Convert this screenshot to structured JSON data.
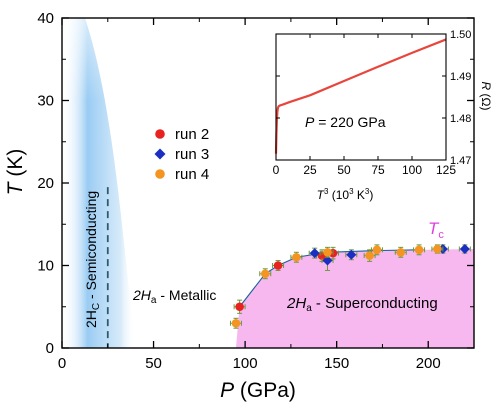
{
  "chart_data": [
    {
      "type": "scatter",
      "xlabel": {
        "main": "P",
        "unit": " (GPa)"
      },
      "ylabel": {
        "main": "T",
        "unit": " (K)"
      },
      "xlim": [
        0,
        225
      ],
      "ylim": [
        0,
        40
      ],
      "x_ticks": [
        0,
        50,
        100,
        150,
        200
      ],
      "y_ticks": [
        0,
        10,
        20,
        30,
        40
      ],
      "grid": false,
      "legend_position": "center",
      "colors": {
        "axes": "#000000",
        "semiconducting_fill": "#2a8fe0",
        "superconducting_fill": "#f7b8f0",
        "boundary_line": "#2b5b6e",
        "tc_label": "#e040e0",
        "errorbar": "#6a9a3a",
        "fit_line": "#1f5f9a"
      },
      "series": [
        {
          "name": "run 2",
          "marker": "circle",
          "color": "#e8231f",
          "points": [
            {
              "x": 97,
              "y": 5.0,
              "xerr": 3,
              "yerr": 0.8
            },
            {
              "x": 118,
              "y": 10.0,
              "xerr": 3,
              "yerr": 0.6
            },
            {
              "x": 142,
              "y": 11.2,
              "xerr": 3,
              "yerr": 0.7
            },
            {
              "x": 148,
              "y": 11.5,
              "xerr": 3,
              "yerr": 0.7
            }
          ]
        },
        {
          "name": "run 3",
          "marker": "diamond",
          "color": "#1a2fc2",
          "points": [
            {
              "x": 138,
              "y": 11.5,
              "xerr": 3,
              "yerr": 0.6
            },
            {
              "x": 145,
              "y": 10.6,
              "xerr": 3,
              "yerr": 1.2
            },
            {
              "x": 158,
              "y": 11.3,
              "xerr": 3,
              "yerr": 0.6
            },
            {
              "x": 208,
              "y": 12.0,
              "xerr": 3,
              "yerr": 0.5
            },
            {
              "x": 220,
              "y": 12.0,
              "xerr": 3,
              "yerr": 0.5
            }
          ]
        },
        {
          "name": "run 4",
          "marker": "circle",
          "color": "#f39520",
          "points": [
            {
              "x": 95,
              "y": 3.0,
              "xerr": 3,
              "yerr": 0.6
            },
            {
              "x": 111,
              "y": 9.0,
              "xerr": 3,
              "yerr": 0.6
            },
            {
              "x": 128,
              "y": 11.0,
              "xerr": 3,
              "yerr": 0.6
            },
            {
              "x": 145,
              "y": 11.6,
              "xerr": 3,
              "yerr": 0.6
            },
            {
              "x": 168,
              "y": 11.2,
              "xerr": 3,
              "yerr": 0.7
            },
            {
              "x": 172,
              "y": 11.9,
              "xerr": 3,
              "yerr": 0.6
            },
            {
              "x": 185,
              "y": 11.6,
              "xerr": 3,
              "yerr": 0.6
            },
            {
              "x": 195,
              "y": 11.9,
              "xerr": 3,
              "yerr": 0.6
            },
            {
              "x": 205,
              "y": 12.0,
              "xerr": 3,
              "yerr": 0.5
            }
          ]
        }
      ],
      "regions": [
        {
          "name": "semiconducting",
          "label_main": "2H",
          "label_sub": "C",
          "label_rest": " - Semiconducting"
        },
        {
          "name": "metallic",
          "label_main": "2H",
          "label_sub": "a",
          "label_rest": " - Metallic"
        },
        {
          "name": "superconducting",
          "label_main": "2H",
          "label_sub": "a",
          "label_rest": " - Superconducting"
        }
      ],
      "tc_label": {
        "main": "T",
        "sub": "c"
      },
      "semiconducting_boundary_x": 25,
      "tc_boundary": [
        [
          95,
          0
        ],
        [
          97,
          5.0
        ],
        [
          111,
          9.0
        ],
        [
          118,
          10.0
        ],
        [
          128,
          11.0
        ],
        [
          145,
          11.6
        ],
        [
          170,
          11.8
        ],
        [
          195,
          11.9
        ],
        [
          225,
          12.0
        ]
      ]
    },
    {
      "type": "line",
      "title": "inset",
      "xlabel": {
        "main": "T",
        "sup": "3",
        "unit_pre": " (10",
        "unit_sup": "3",
        "unit_mid": " K",
        "unit_sup2": "3",
        "unit_post": ")"
      },
      "ylabel": {
        "main": "R",
        "unit": " (Ω)"
      },
      "xlim": [
        0,
        125
      ],
      "ylim": [
        1.47,
        1.5
      ],
      "x_ticks": [
        0,
        25,
        50,
        75,
        100,
        125
      ],
      "y_ticks": [
        1.47,
        1.48,
        1.49,
        1.5
      ],
      "annotation": {
        "main": "P",
        "rest": " = 220 GPa"
      },
      "series": [
        {
          "color": "#e8463c",
          "x": [
            0,
            0.3,
            0.6,
            1.0,
            1.5,
            2,
            3,
            5,
            10,
            25,
            50,
            75,
            100,
            125
          ],
          "y": [
            1.4715,
            1.476,
            1.479,
            1.4815,
            1.4825,
            1.4828,
            1.483,
            1.4832,
            1.4838,
            1.4854,
            1.4888,
            1.4922,
            1.4955,
            1.4987
          ]
        }
      ]
    }
  ]
}
